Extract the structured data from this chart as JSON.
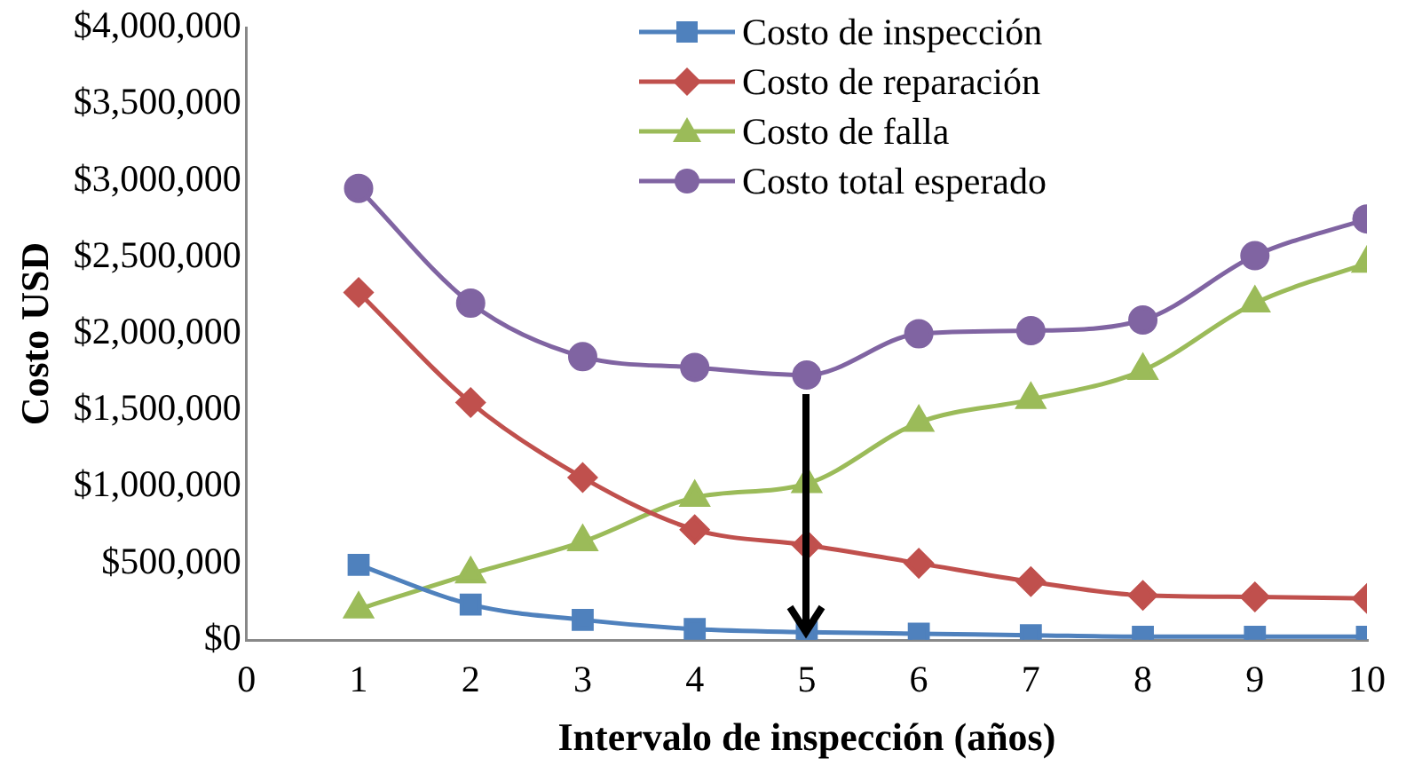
{
  "chart_data": {
    "type": "line",
    "xlabel": "Intervalo de inspección (años)",
    "ylabel": "Costo USD",
    "x": [
      1,
      2,
      3,
      4,
      5,
      6,
      7,
      8,
      9,
      10
    ],
    "series": [
      {
        "name": "Costo de inspección",
        "color": "#4f81bd",
        "marker": "square",
        "values": [
          490000,
          230000,
          130000,
          70000,
          50000,
          40000,
          30000,
          20000,
          20000,
          20000
        ]
      },
      {
        "name": "Costo de reparación",
        "color": "#c0504d",
        "marker": "diamond",
        "values": [
          2270000,
          1550000,
          1060000,
          720000,
          620000,
          500000,
          380000,
          290000,
          280000,
          270000
        ]
      },
      {
        "name": "Costo de falla",
        "color": "#9bbb59",
        "marker": "triangle",
        "values": [
          200000,
          430000,
          640000,
          930000,
          1020000,
          1420000,
          1570000,
          1760000,
          2200000,
          2460000
        ]
      },
      {
        "name": "Costo total esperado",
        "color": "#8064a2",
        "marker": "circle",
        "values": [
          2950000,
          2200000,
          1850000,
          1780000,
          1730000,
          2000000,
          2020000,
          2090000,
          2510000,
          2750000
        ]
      }
    ],
    "xlim": [
      0,
      10
    ],
    "xticks": [
      0,
      1,
      2,
      3,
      4,
      5,
      6,
      7,
      8,
      9,
      10
    ],
    "ylim": [
      0,
      4000000
    ],
    "yticks": [
      {
        "value": 0,
        "label": "$0"
      },
      {
        "value": 500000,
        "label": "$500,000"
      },
      {
        "value": 1000000,
        "label": "$1,000,000"
      },
      {
        "value": 1500000,
        "label": "$1,500,000"
      },
      {
        "value": 2000000,
        "label": "$2,000,000"
      },
      {
        "value": 2500000,
        "label": "$2,500,000"
      },
      {
        "value": 3000000,
        "label": "$3,000,000"
      },
      {
        "value": 3500000,
        "label": "$3,500,000"
      },
      {
        "value": 4000000,
        "label": "$4,000,000"
      }
    ],
    "grid": false,
    "legend": "top right"
  }
}
